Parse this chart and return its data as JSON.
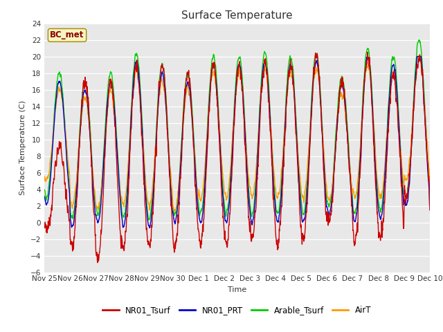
{
  "title": "Surface Temperature",
  "ylabel": "Surface Temperature (C)",
  "xlabel": "Time",
  "annotation": "BC_met",
  "ylim": [
    -6,
    24
  ],
  "yticks": [
    -6,
    -4,
    -2,
    0,
    2,
    4,
    6,
    8,
    10,
    12,
    14,
    16,
    18,
    20,
    22,
    24
  ],
  "xtick_labels": [
    "Nov 25",
    "Nov 26",
    "Nov 27",
    "Nov 28",
    "Nov 29",
    "Nov 30",
    "Dec 1",
    "Dec 2",
    "Dec 3",
    "Dec 4",
    "Dec 5",
    "Dec 6",
    "Dec 7",
    "Dec 8",
    "Dec 9",
    "Dec 10"
  ],
  "series_colors": {
    "NR01_Tsurf": "#cc0000",
    "NR01_PRT": "#0000cc",
    "Arable_Tsurf": "#00cc00",
    "AirT": "#ff9900"
  },
  "line_width": 1.0,
  "fig_width": 6.4,
  "fig_height": 4.8,
  "dpi": 100,
  "plot_bg_color": "#e8e8e8",
  "fig_bg_color": "#ffffff"
}
